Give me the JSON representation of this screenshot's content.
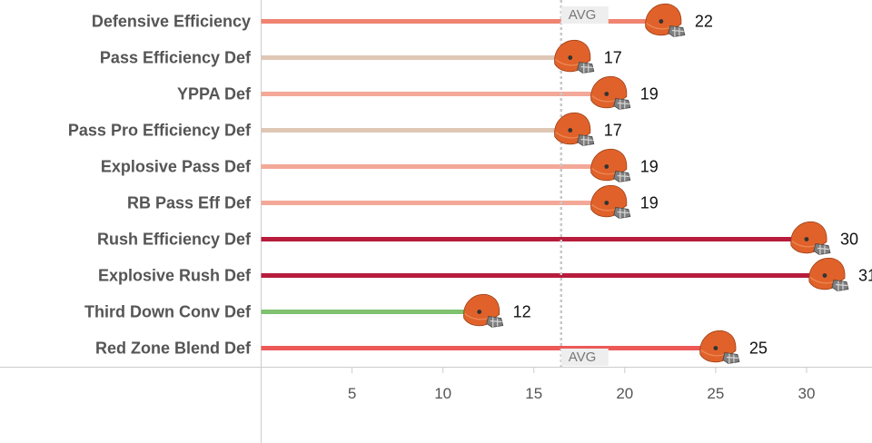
{
  "chart_data": {
    "type": "bar",
    "categories": [
      "Defensive Efficiency",
      "Pass Efficiency Def",
      "YPPA Def",
      "Pass Pro Efficiency Def",
      "Explosive Pass Def",
      "RB Pass Eff Def",
      "Rush Efficiency Def",
      "Explosive Rush Def",
      "Third Down Conv Def",
      "Red Zone Blend Def"
    ],
    "values": [
      22,
      17,
      19,
      17,
      19,
      19,
      30,
      31,
      12,
      25
    ],
    "data_labels": [
      "22",
      "17",
      "19",
      "17",
      "19",
      "19",
      "30",
      "31",
      "12",
      "25"
    ],
    "bar_colors": [
      "#ef8471",
      "#dfc7b5",
      "#f3a898",
      "#dfc7b5",
      "#f3a898",
      "#f3a898",
      "#b71c3c",
      "#b71c3c",
      "#7ec16f",
      "#ec5957"
    ],
    "average": 16.5,
    "avg_labels": [
      "AVG",
      "AVG"
    ],
    "x_ticks": [
      5,
      10,
      15,
      20,
      25,
      30
    ],
    "x_tick_labels": [
      "5",
      "10",
      "15",
      "20",
      "25",
      "30"
    ],
    "xlim": [
      0,
      33.6
    ],
    "marker": "football-helmet-icon",
    "helmet_color": "#e0622a",
    "grid": false
  }
}
